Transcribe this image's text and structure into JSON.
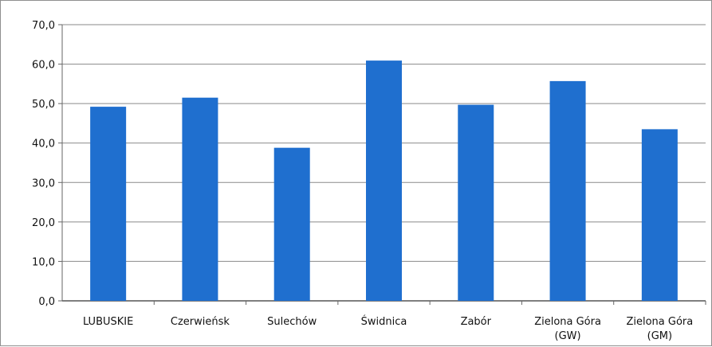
{
  "chart_data": {
    "type": "bar",
    "categories": [
      "LUBUSKIE",
      "Czerwieńsk",
      "Sulechów",
      "Świdnica",
      "Zabór",
      "Zielona Góra (GW)",
      "Zielona Góra (GM)"
    ],
    "values": [
      49.2,
      51.5,
      38.8,
      60.9,
      49.7,
      55.7,
      43.5
    ],
    "ylim": [
      0,
      70
    ],
    "yticks": [
      "0,0",
      "10,0",
      "20,0",
      "30,0",
      "40,0",
      "50,0",
      "60,0",
      "70,0"
    ],
    "grid": true,
    "legend": "none",
    "bar_color": "#1f6fcf",
    "title": "",
    "xlabel": "",
    "ylabel": ""
  }
}
